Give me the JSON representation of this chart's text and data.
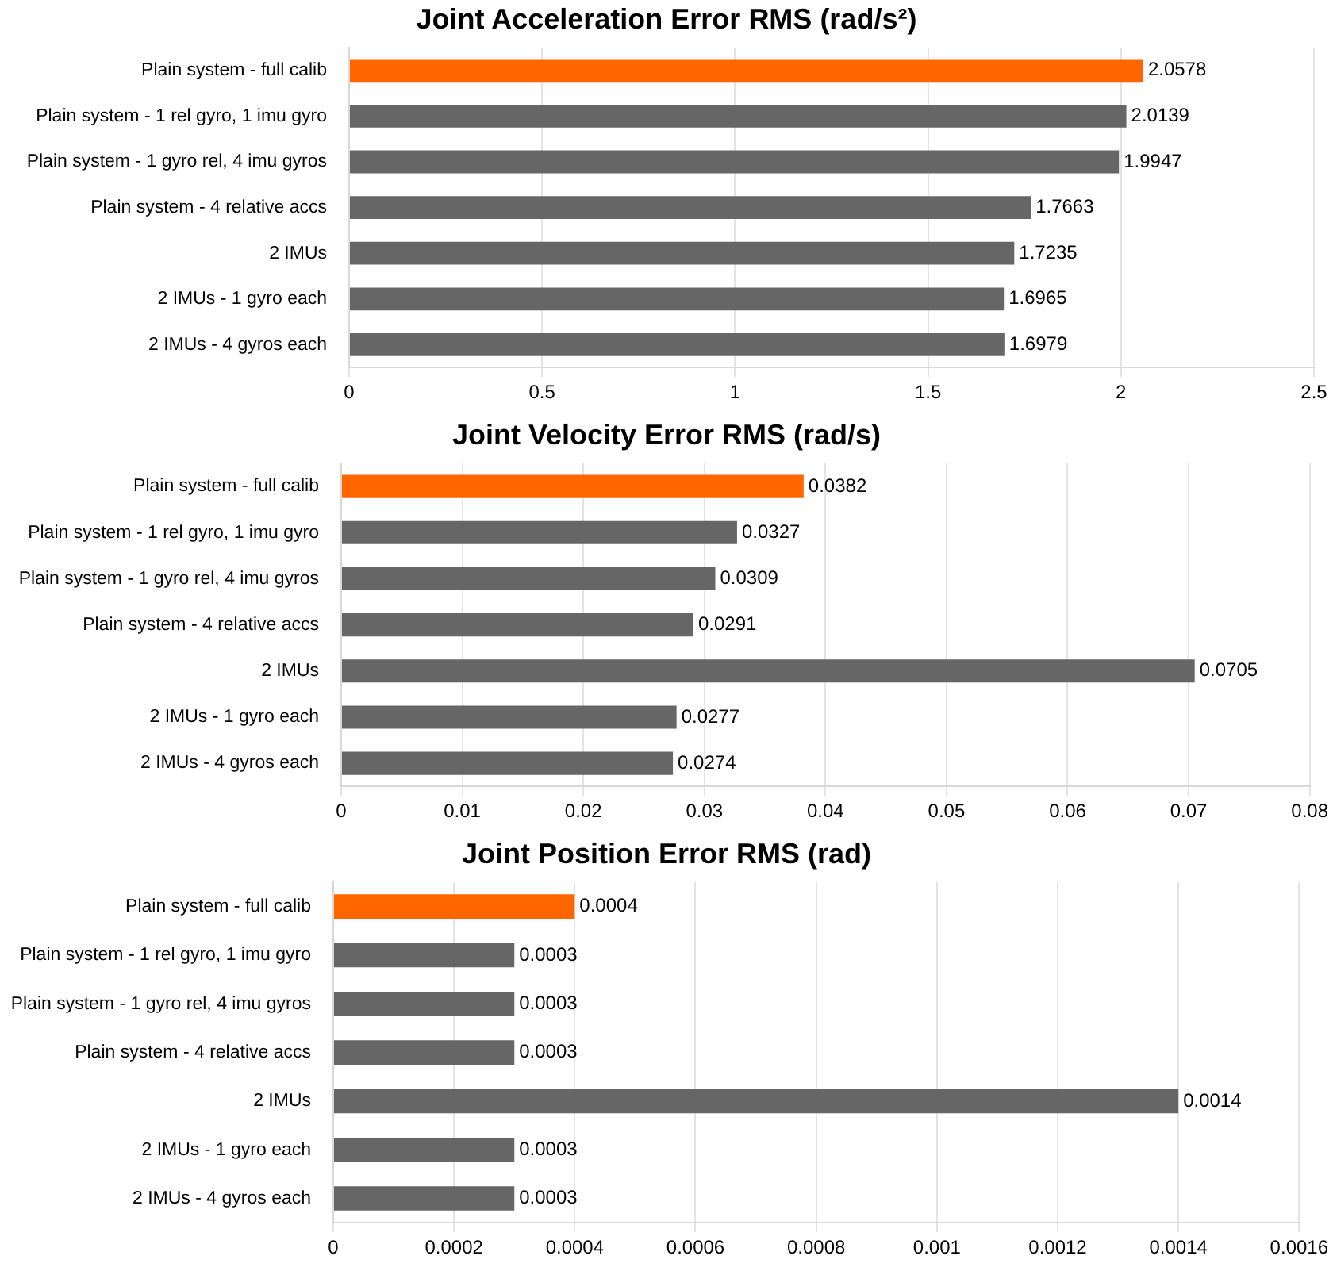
{
  "chart_data": [
    {
      "type": "bar",
      "orientation": "horizontal",
      "title": "Joint Acceleration Error RMS (rad/s²)",
      "categories": [
        "Plain system - full calib",
        "Plain system - 1 rel gyro, 1 imu gyro",
        "Plain system - 1 gyro rel, 4 imu gyros",
        "Plain system - 4 relative accs",
        "2 IMUs",
        "2 IMUs - 1 gyro each",
        "2 IMUs - 4 gyros each"
      ],
      "values": [
        2.0578,
        2.0139,
        1.9947,
        1.7663,
        1.7235,
        1.6965,
        1.6979
      ],
      "colors": [
        "#ff6600",
        "#666666",
        "#666666",
        "#666666",
        "#666666",
        "#666666",
        "#666666"
      ],
      "xlim": [
        0,
        2.5
      ],
      "xticks": [
        0,
        0.5,
        1,
        1.5,
        2,
        2.5
      ],
      "grid": "x",
      "data_labels": true
    },
    {
      "type": "bar",
      "orientation": "horizontal",
      "title": "Joint Velocity Error RMS (rad/s)",
      "categories": [
        "Plain system - full calib",
        "Plain system - 1 rel gyro, 1 imu gyro",
        "Plain system - 1 gyro rel, 4 imu gyros",
        "Plain system - 4 relative accs",
        "2 IMUs",
        "2 IMUs - 1 gyro each",
        "2 IMUs - 4 gyros each"
      ],
      "values": [
        0.0382,
        0.0327,
        0.0309,
        0.0291,
        0.0705,
        0.0277,
        0.0274
      ],
      "colors": [
        "#ff6600",
        "#666666",
        "#666666",
        "#666666",
        "#666666",
        "#666666",
        "#666666"
      ],
      "xlim": [
        0,
        0.08
      ],
      "xticks": [
        0,
        0.01,
        0.02,
        0.03,
        0.04,
        0.05,
        0.06,
        0.07,
        0.08
      ],
      "grid": "x",
      "data_labels": true
    },
    {
      "type": "bar",
      "orientation": "horizontal",
      "title": "Joint Position Error RMS (rad)",
      "categories": [
        "Plain system - full calib",
        "Plain system - 1 rel gyro, 1 imu gyro",
        "Plain system - 1 gyro rel, 4 imu gyros",
        "Plain system - 4 relative accs",
        "2 IMUs",
        "2 IMUs - 1 gyro each",
        "2 IMUs - 4 gyros each"
      ],
      "values": [
        0.0004,
        0.0003,
        0.0003,
        0.0003,
        0.0014,
        0.0003,
        0.0003
      ],
      "colors": [
        "#ff6600",
        "#666666",
        "#666666",
        "#666666",
        "#666666",
        "#666666",
        "#666666"
      ],
      "xlim": [
        0,
        0.0016
      ],
      "xticks": [
        0,
        0.0002,
        0.0004,
        0.0006,
        0.0008,
        0.001,
        0.0012,
        0.0014,
        0.0016
      ],
      "grid": "x",
      "data_labels": true
    }
  ]
}
